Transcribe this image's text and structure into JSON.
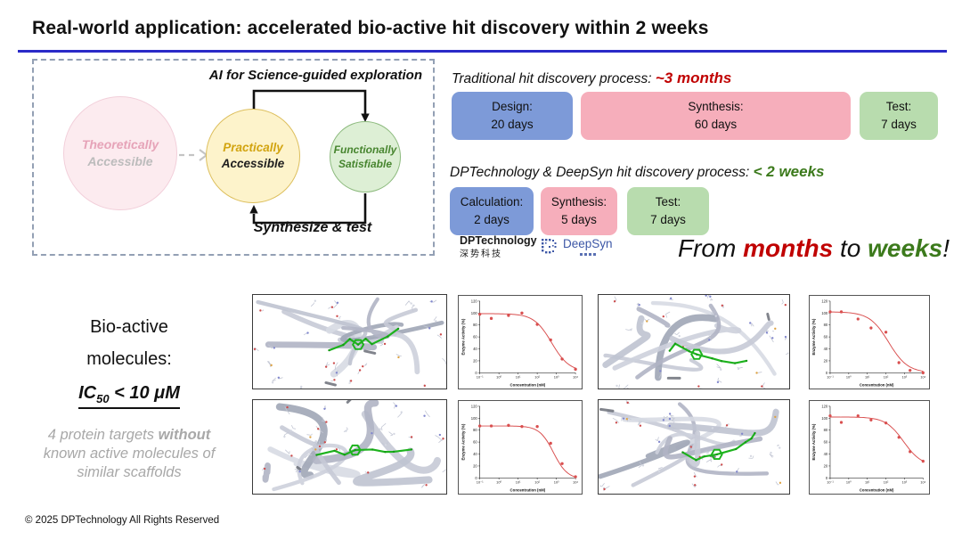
{
  "slide": {
    "title": "Real-world application: accelerated bio-active hit discovery within 2 weeks",
    "underline_color": "#2a2ac8",
    "footer_text": "© 2025 DPTechnology All Rights Reserved"
  },
  "diagram": {
    "top_label": "AI for Science-guided exploration",
    "bottom_label": "Synthesize & test",
    "circles": [
      {
        "line1": "Theoretically",
        "line2": "Accessible",
        "fill": "#fcebef",
        "border": "#f2cfda",
        "line1_color": "#e6a3b8",
        "line2_color": "#bcbcbc"
      },
      {
        "line1": "Practically",
        "line2": "Accessible",
        "fill": "#fdf3cb",
        "border": "#ddbf5d",
        "line1_color": "#d2a410",
        "line2_color": "#1f1f1f"
      },
      {
        "line1": "Functionally",
        "line2": "Satisfiable",
        "fill": "#ddefd5",
        "border": "#8cba7d",
        "line1_color": "#47852f",
        "line2_color": "#47852f"
      }
    ]
  },
  "processes": [
    {
      "heading_prefix": "Traditional hit discovery process: ",
      "heading_highlight": "~3 months",
      "highlight_color": "#c00000",
      "steps": [
        {
          "label": "Design:",
          "duration": "20 days",
          "color": "#7d9ad8"
        },
        {
          "label": "Synthesis:",
          "duration": "60 days",
          "color": "#f6aebb"
        },
        {
          "label": "Test:",
          "duration": "7 days",
          "color": "#b8dcae"
        }
      ]
    },
    {
      "heading_prefix": "DPTechnology & DeepSyn hit discovery process: ",
      "heading_highlight": "< 2 weeks",
      "highlight_color": "#3c7a1c",
      "steps": [
        {
          "label": "Calculation:",
          "duration": "2 days",
          "color": "#7d9ad8"
        },
        {
          "label": "Synthesis:",
          "duration": "5 days",
          "color": "#f6aebb"
        },
        {
          "label": "Test:",
          "duration": "7 days",
          "color": "#b8dcae"
        }
      ]
    }
  ],
  "logos": {
    "dptech_name": "DPTechnology",
    "dptech_cn": "深势科技",
    "deepsyn_name": "DeepSyn",
    "deepsyn_color": "#3d57a6",
    "deepsyn_icon": "dot-matrix-logo"
  },
  "tagline": {
    "from": "From ",
    "months": "months",
    "to": " to ",
    "weeks": "weeks",
    "bang": "!",
    "months_color": "#c00000",
    "weeks_color": "#3c7a1c"
  },
  "bio": {
    "line1": "Bio-active",
    "line2": "molecules:",
    "ic_prefix": "IC",
    "ic_sub": "50",
    "ic_rest": " < 10 μM",
    "note_l1_pre": "4 protein targets ",
    "note_l1_bold": "without",
    "note_l2": "known active molecules of",
    "note_l3": "similar scaffolds"
  },
  "chart_data": [
    {
      "type": "scatter",
      "position": "top-left",
      "xlabel": "Concentration (nM)",
      "ylabel": "Enzyme Activity (%)",
      "x_scale": "log",
      "x_ticks": [
        "10⁻¹",
        "10⁰",
        "10¹",
        "10²",
        "10³",
        "10⁴"
      ],
      "y_ticks": [
        0,
        20,
        40,
        60,
        80,
        100,
        120
      ],
      "ylim": [
        0,
        120
      ],
      "color": "#d94f4f",
      "points": [
        [
          -1,
          98
        ],
        [
          -0.4,
          91
        ],
        [
          0.5,
          96
        ],
        [
          1.2,
          100
        ],
        [
          2,
          81
        ],
        [
          2.7,
          55
        ],
        [
          3.3,
          23
        ],
        [
          4,
          6
        ]
      ],
      "curve": {
        "top": 99,
        "bottom": 2,
        "log_ic50": 2.75,
        "hill": 0.95
      }
    },
    {
      "type": "scatter",
      "position": "top-right",
      "xlabel": "Concentration (nM)",
      "ylabel": "Enzyme Activity (%)",
      "x_scale": "log",
      "x_ticks": [
        "10⁻¹",
        "10⁰",
        "10¹",
        "10²",
        "10³",
        "10⁴"
      ],
      "y_ticks": [
        0,
        20,
        40,
        60,
        80,
        100,
        120
      ],
      "ylim": [
        0,
        120
      ],
      "color": "#d94f4f",
      "points": [
        [
          -1,
          102
        ],
        [
          -0.4,
          102
        ],
        [
          0.5,
          90
        ],
        [
          1.2,
          75
        ],
        [
          2,
          68
        ],
        [
          2.7,
          17
        ],
        [
          3.3,
          4
        ],
        [
          4,
          0
        ]
      ],
      "curve": {
        "top": 102,
        "bottom": 0,
        "log_ic50": 2.15,
        "hill": 0.85
      }
    },
    {
      "type": "scatter",
      "position": "bottom-left",
      "xlabel": "Concentration (nM)",
      "ylabel": "Enzyme Activity (%)",
      "x_scale": "log",
      "x_ticks": [
        "10⁻¹",
        "10⁰",
        "10¹",
        "10²",
        "10³",
        "10⁴"
      ],
      "y_ticks": [
        0,
        20,
        40,
        60,
        80,
        100,
        120
      ],
      "ylim": [
        0,
        120
      ],
      "color": "#d94f4f",
      "points": [
        [
          -1,
          87
        ],
        [
          -0.4,
          87
        ],
        [
          0.5,
          88
        ],
        [
          1.2,
          86
        ],
        [
          2,
          86
        ],
        [
          2.7,
          58
        ],
        [
          3.3,
          24
        ],
        [
          4,
          2
        ]
      ],
      "curve": {
        "top": 87,
        "bottom": -2,
        "log_ic50": 2.85,
        "hill": 1.2
      }
    },
    {
      "type": "scatter",
      "position": "bottom-right",
      "xlabel": "Concentration (nM)",
      "ylabel": "Enzyme Activity (%)",
      "x_scale": "log",
      "x_ticks": [
        "10⁻¹",
        "10⁰",
        "10¹",
        "10²",
        "10³",
        "10⁴"
      ],
      "y_ticks": [
        0,
        20,
        40,
        60,
        80,
        100,
        120
      ],
      "ylim": [
        0,
        120
      ],
      "color": "#d94f4f",
      "points": [
        [
          -1,
          104
        ],
        [
          -0.4,
          93
        ],
        [
          0.5,
          104
        ],
        [
          1.2,
          97
        ],
        [
          2,
          92
        ],
        [
          2.7,
          68
        ],
        [
          3.3,
          44
        ],
        [
          4,
          28
        ]
      ],
      "curve": {
        "top": 102,
        "bottom": 20,
        "log_ic50": 2.95,
        "hill": 0.9
      }
    }
  ]
}
